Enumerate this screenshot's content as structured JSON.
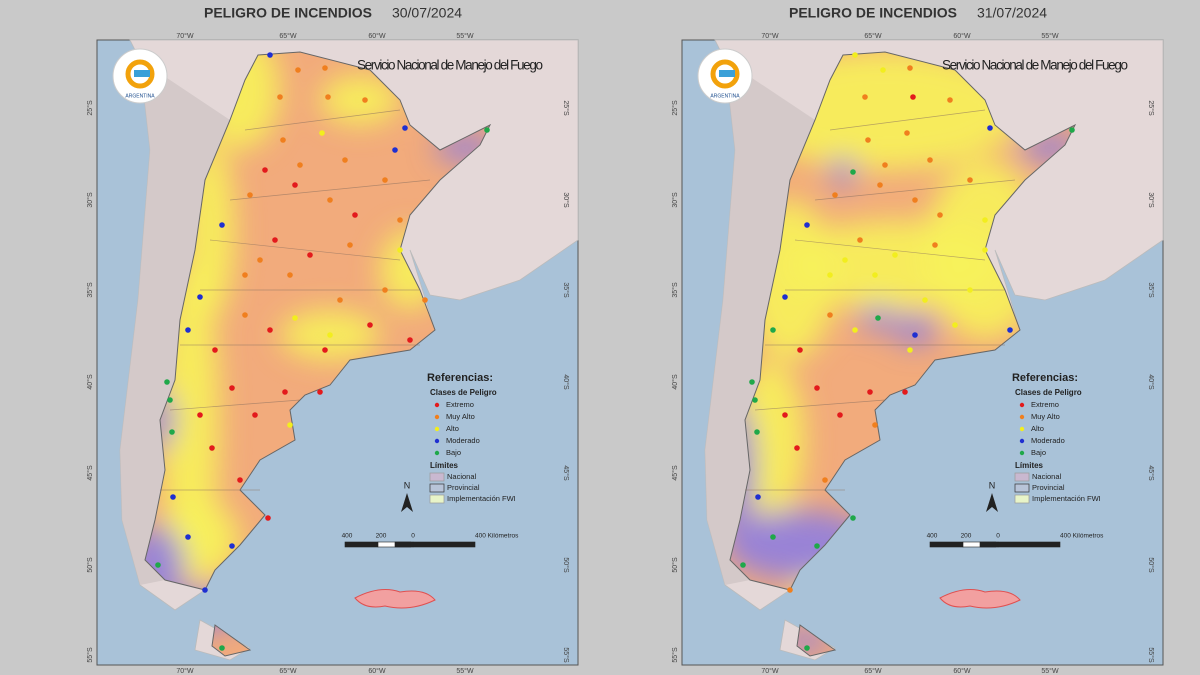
{
  "maps": [
    {
      "title": "PELIGRO DE INCENDIOS",
      "date": "30/07/2024"
    },
    {
      "title": "PELIGRO DE INCENDIOS",
      "date": "31/07/2024"
    }
  ],
  "source": "Servicio Nacional de Manejo del Fuego",
  "logo_text": "ARGENTINA",
  "longitudes": [
    "70°W",
    "65°W",
    "60°W",
    "55°W"
  ],
  "latitudes": [
    "25°S",
    "30°S",
    "35°S",
    "40°S",
    "45°S",
    "50°S",
    "55°S"
  ],
  "legend": {
    "title": "Referencias:",
    "classes_title": "Clases de Peligro",
    "classes": [
      {
        "label": "Extremo",
        "color": "#e31a1c"
      },
      {
        "label": "Muy Alto",
        "color": "#f07f1e"
      },
      {
        "label": "Alto",
        "color": "#f2ee1e"
      },
      {
        "label": "Moderado",
        "color": "#1f2fd1"
      },
      {
        "label": "Bajo",
        "color": "#1fa84a"
      }
    ],
    "limits_title": "Límites",
    "limits": [
      "Nacional",
      "Provincial",
      "Implementación FWI"
    ]
  },
  "north": "N",
  "scale": [
    "400",
    "200",
    "0",
    "400 Kilómetros"
  ]
}
